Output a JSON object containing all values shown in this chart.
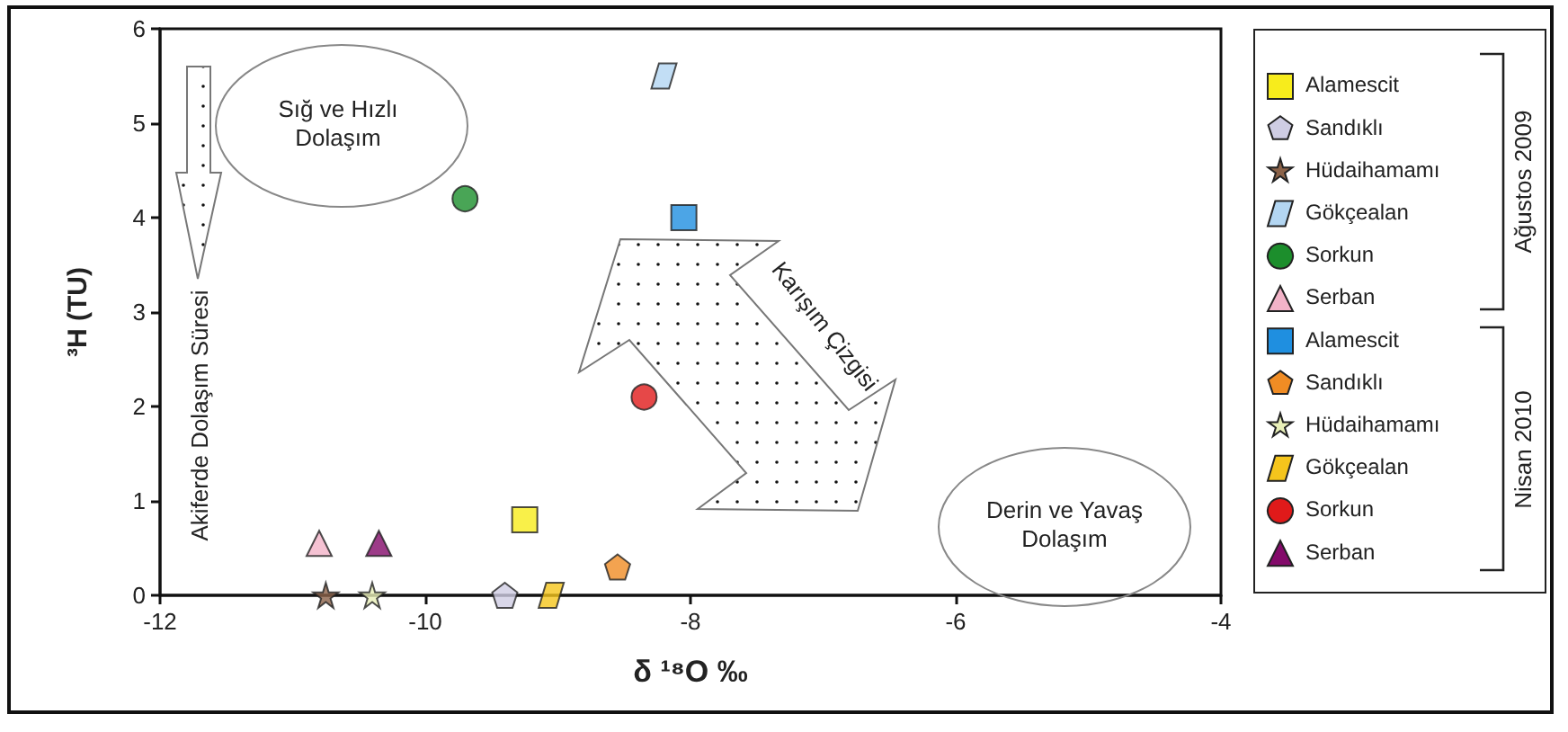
{
  "chart_data": {
    "type": "scatter",
    "xlabel": "δ ¹⁸O ‰",
    "ylabel": "³H (TU)",
    "xlim": [
      -12,
      -4
    ],
    "xticks": [
      -12,
      -10,
      -8,
      -6,
      -4
    ],
    "ylim": [
      0,
      6
    ],
    "yticks": [
      0,
      1,
      2,
      3,
      4,
      5,
      6
    ],
    "grid": false,
    "legend": "right",
    "annotations": [
      "Akiferde Dolaşım Süresi",
      "Sığ ve Hızlı Dolaşım",
      "Karışım Çizgisi",
      "Derin ve Yavaş Dolaşım",
      "Ağustos 2009",
      "Nisan 2010"
    ],
    "series": [
      {
        "name": "Alamescit",
        "color": "#f7ec1c",
        "marker": "square",
        "x": [
          -9.25
        ],
        "values": [
          0.8
        ]
      },
      {
        "name": "Sandıklı",
        "color": "#cfcde3",
        "x": [
          -9.4
        ],
        "values": [
          0
        ]
      },
      {
        "name": "Hüdaihamamı",
        "color": "#8b6248",
        "marker": "star",
        "x": [
          -10.75
        ],
        "values": [
          0
        ]
      },
      {
        "name": "Gökçealan",
        "color": "#b3d6f2",
        "marker": "diamond",
        "x": [
          -8.2
        ],
        "values": [
          5.5
        ]
      },
      {
        "name": "Sorkun",
        "color": "#1c8e2c",
        "marker": "circle",
        "x": [
          -9.7
        ],
        "values": [
          4.2
        ]
      },
      {
        "name": "Serban",
        "color": "#f2b3c8",
        "marker": "triangle",
        "x": [
          -10.8
        ],
        "values": [
          0.55
        ]
      },
      {
        "name": "Alamescit",
        "color": "#1f8fe0",
        "marker": "square",
        "x": [
          -8.05
        ],
        "values": [
          4.0
        ]
      },
      {
        "name": "Sandıklı",
        "color": "#f08c24",
        "x": [
          -8.55
        ],
        "values": [
          0.3
        ]
      },
      {
        "name": "Hüdaihamamı",
        "color": "#e8efb8",
        "marker": "star",
        "x": [
          -10.4
        ],
        "values": [
          0
        ]
      },
      {
        "name": "Gökçealan",
        "color": "#f5c51c",
        "marker": "diamond",
        "x": [
          -9.05
        ],
        "values": [
          0
        ]
      },
      {
        "name": "Sorkun",
        "color": "#e01a1a",
        "marker": "circle",
        "x": [
          -8.35
        ],
        "values": [
          2.1
        ]
      },
      {
        "name": "Serban",
        "color": "#830a6a",
        "marker": "triangle",
        "x": [
          -10.35
        ],
        "values": [
          0.55
        ]
      }
    ]
  }
}
